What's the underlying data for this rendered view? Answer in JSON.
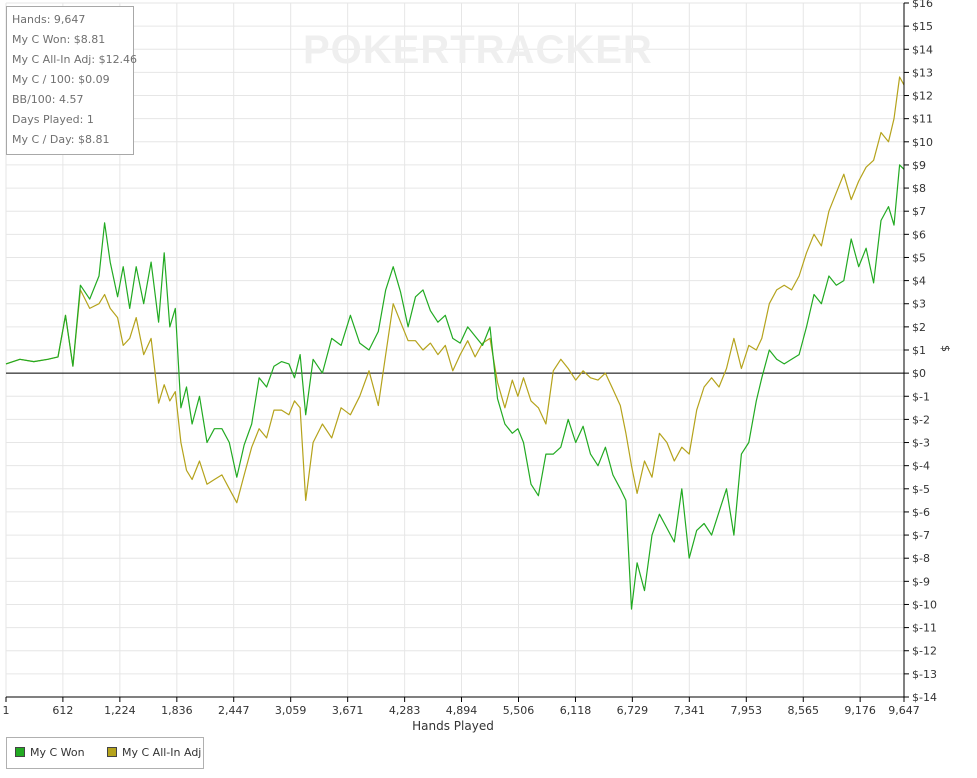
{
  "stats_box": {
    "hands": "Hands: 9,647",
    "won": "My C Won: $8.81",
    "allin_adj": "My C All-In Adj: $12.46",
    "per100": "My C / 100: $0.09",
    "bb100": "BB/100: 4.57",
    "days": "Days Played: 1",
    "per_day": "My C / Day: $8.81"
  },
  "watermark": "POKERTRACKER",
  "chart_data": {
    "type": "line",
    "xlabel": "Hands Played",
    "ylabel": "$",
    "xlim": [
      1,
      9647
    ],
    "ylim": [
      -14,
      16
    ],
    "x_ticks": [
      "1",
      "612",
      "1,224",
      "1,836",
      "2,447",
      "3,059",
      "3,671",
      "4,283",
      "4,894",
      "5,506",
      "6,118",
      "6,729",
      "7,341",
      "7,953",
      "8,565",
      "9,176",
      "9,647"
    ],
    "x_tick_values": [
      1,
      612,
      1224,
      1836,
      2447,
      3059,
      3671,
      4283,
      4894,
      5506,
      6118,
      6729,
      7341,
      7953,
      8565,
      9176,
      9647
    ],
    "y_ticks": [
      "$16",
      "$15",
      "$14",
      "$13",
      "$12",
      "$11",
      "$10",
      "$9",
      "$8",
      "$7",
      "$6",
      "$5",
      "$4",
      "$3",
      "$2",
      "$1",
      "$0",
      "$-1",
      "$-2",
      "$-3",
      "$-4",
      "$-5",
      "$-6",
      "$-7",
      "$-8",
      "$-9",
      "$-10",
      "$-11",
      "$-12",
      "$-13",
      "$-14"
    ],
    "y_tick_values": [
      16,
      15,
      14,
      13,
      12,
      11,
      10,
      9,
      8,
      7,
      6,
      5,
      4,
      3,
      2,
      1,
      0,
      -1,
      -2,
      -3,
      -4,
      -5,
      -6,
      -7,
      -8,
      -9,
      -10,
      -11,
      -12,
      -13,
      -14
    ],
    "grid": true,
    "legend_position": "bottom-left",
    "series": [
      {
        "name": "My C Won",
        "color": "#22aa22",
        "x": [
          1,
          150,
          300,
          450,
          560,
          640,
          720,
          800,
          900,
          1000,
          1060,
          1120,
          1200,
          1260,
          1330,
          1400,
          1480,
          1560,
          1640,
          1700,
          1760,
          1820,
          1880,
          1940,
          2000,
          2080,
          2160,
          2240,
          2320,
          2400,
          2480,
          2560,
          2640,
          2720,
          2800,
          2880,
          2960,
          3040,
          3100,
          3160,
          3220,
          3300,
          3400,
          3500,
          3600,
          3700,
          3800,
          3900,
          4000,
          4080,
          4160,
          4240,
          4320,
          4400,
          4480,
          4560,
          4640,
          4720,
          4800,
          4880,
          4960,
          5040,
          5120,
          5200,
          5280,
          5360,
          5440,
          5500,
          5560,
          5640,
          5720,
          5800,
          5880,
          5960,
          6040,
          6120,
          6200,
          6280,
          6360,
          6440,
          6520,
          6600,
          6660,
          6720,
          6780,
          6860,
          6940,
          7020,
          7100,
          7180,
          7260,
          7340,
          7420,
          7500,
          7580,
          7660,
          7740,
          7820,
          7900,
          7980,
          8060,
          8120,
          8200,
          8280,
          8360,
          8440,
          8520,
          8600,
          8680,
          8760,
          8840,
          8920,
          9000,
          9080,
          9160,
          9240,
          9320,
          9400,
          9480,
          9540,
          9600,
          9647
        ],
        "values": [
          0.4,
          0.6,
          0.5,
          0.6,
          0.7,
          2.5,
          0.3,
          3.8,
          3.2,
          4.2,
          6.5,
          4.8,
          3.3,
          4.6,
          2.8,
          4.6,
          3.0,
          4.8,
          2.2,
          5.2,
          2.0,
          2.8,
          -1.5,
          -0.6,
          -2.2,
          -1.0,
          -3.0,
          -2.4,
          -2.4,
          -3.0,
          -4.5,
          -3.1,
          -2.2,
          -0.2,
          -0.6,
          0.3,
          0.5,
          0.4,
          -0.2,
          0.8,
          -1.8,
          0.6,
          0.0,
          1.5,
          1.2,
          2.5,
          1.3,
          1.0,
          1.8,
          3.6,
          4.6,
          3.5,
          2.0,
          3.3,
          3.6,
          2.7,
          2.2,
          2.5,
          1.5,
          1.3,
          2.0,
          1.6,
          1.2,
          2.0,
          -1.1,
          -2.2,
          -2.6,
          -2.4,
          -3.0,
          -4.8,
          -5.3,
          -3.5,
          -3.5,
          -3.2,
          -2.0,
          -3.0,
          -2.3,
          -3.5,
          -4.0,
          -3.2,
          -4.4,
          -5.0,
          -5.5,
          -10.2,
          -8.2,
          -9.4,
          -7.0,
          -6.1,
          -6.7,
          -7.3,
          -5.0,
          -8.0,
          -6.8,
          -6.5,
          -7.0,
          -6.0,
          -5.0,
          -7.0,
          -3.5,
          -3.0,
          -1.2,
          -0.2,
          1.0,
          0.6,
          0.4,
          0.6,
          0.8,
          2.0,
          3.4,
          3.0,
          4.2,
          3.8,
          4.0,
          5.8,
          4.6,
          5.4,
          3.9,
          6.6,
          7.2,
          6.4,
          9.0,
          8.81
        ]
      },
      {
        "name": "My C All-In Adj",
        "color": "#b5a31c",
        "x": [
          1,
          150,
          300,
          450,
          560,
          640,
          720,
          800,
          900,
          1000,
          1060,
          1120,
          1200,
          1260,
          1330,
          1400,
          1480,
          1560,
          1640,
          1700,
          1760,
          1820,
          1880,
          1940,
          2000,
          2080,
          2160,
          2240,
          2320,
          2400,
          2480,
          2560,
          2640,
          2720,
          2800,
          2880,
          2960,
          3040,
          3100,
          3160,
          3220,
          3300,
          3400,
          3500,
          3600,
          3700,
          3800,
          3900,
          4000,
          4080,
          4160,
          4240,
          4320,
          4400,
          4480,
          4560,
          4640,
          4720,
          4800,
          4880,
          4960,
          5040,
          5120,
          5200,
          5280,
          5360,
          5440,
          5500,
          5560,
          5640,
          5720,
          5800,
          5880,
          5960,
          6040,
          6120,
          6200,
          6280,
          6360,
          6440,
          6520,
          6600,
          6660,
          6720,
          6780,
          6860,
          6940,
          7020,
          7100,
          7180,
          7260,
          7340,
          7420,
          7500,
          7580,
          7660,
          7740,
          7820,
          7900,
          7980,
          8060,
          8120,
          8200,
          8280,
          8360,
          8440,
          8520,
          8600,
          8680,
          8760,
          8840,
          8920,
          9000,
          9080,
          9160,
          9240,
          9320,
          9400,
          9480,
          9540,
          9600,
          9647
        ],
        "values": [
          0.4,
          0.6,
          0.5,
          0.6,
          0.7,
          2.5,
          0.3,
          3.6,
          2.8,
          3.0,
          3.4,
          2.8,
          2.4,
          1.2,
          1.5,
          2.4,
          0.8,
          1.5,
          -1.3,
          -0.5,
          -1.2,
          -0.8,
          -3.0,
          -4.2,
          -4.6,
          -3.8,
          -4.8,
          -4.6,
          -4.4,
          -5.0,
          -5.6,
          -4.4,
          -3.2,
          -2.4,
          -2.8,
          -1.6,
          -1.6,
          -1.8,
          -1.2,
          -1.5,
          -5.5,
          -3.0,
          -2.2,
          -2.8,
          -1.5,
          -1.8,
          -1.0,
          0.1,
          -1.4,
          0.8,
          3.0,
          2.2,
          1.4,
          1.4,
          1.0,
          1.3,
          0.8,
          1.2,
          0.1,
          0.8,
          1.4,
          0.7,
          1.3,
          1.5,
          -0.4,
          -1.5,
          -0.3,
          -1.0,
          -0.2,
          -1.2,
          -1.5,
          -2.2,
          0.1,
          0.6,
          0.2,
          -0.3,
          0.1,
          -0.2,
          -0.3,
          0.0,
          -0.7,
          -1.4,
          -2.6,
          -4.0,
          -5.2,
          -3.8,
          -4.5,
          -2.6,
          -3.0,
          -3.8,
          -3.2,
          -3.5,
          -1.6,
          -0.6,
          -0.2,
          -0.6,
          0.2,
          1.5,
          0.2,
          1.2,
          1.0,
          1.5,
          3.0,
          3.6,
          3.8,
          3.6,
          4.2,
          5.2,
          6.0,
          5.5,
          7.0,
          7.8,
          8.6,
          7.5,
          8.3,
          8.9,
          9.2,
          10.4,
          10.0,
          11.0,
          12.8,
          12.46
        ]
      }
    ]
  }
}
